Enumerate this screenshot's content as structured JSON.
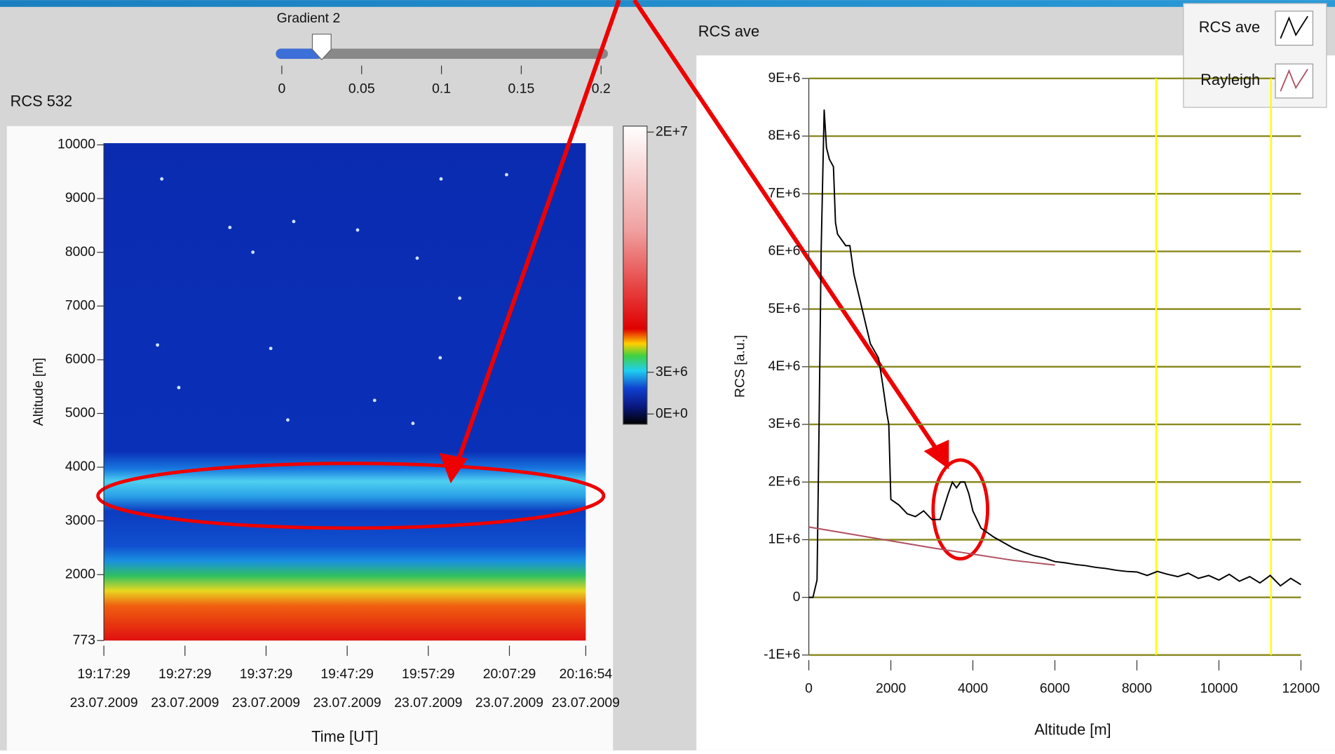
{
  "slider": {
    "label": "Gradient 2",
    "value": 0.025,
    "range": [
      0,
      0.2
    ],
    "ticks": [
      0,
      0.05,
      0.1,
      0.15,
      0.2
    ]
  },
  "intensity_graph": {
    "title": "RCS 532",
    "y_label": "Altitude [m]",
    "x_label": "Time [UT]",
    "ylim": [
      773,
      10000
    ],
    "yticks": [
      10000,
      9000,
      8000,
      7000,
      6000,
      5000,
      4000,
      3000,
      2000,
      773
    ],
    "xticks": [
      {
        "time": "19:17:29",
        "date": "23.07.2009"
      },
      {
        "time": "19:27:29",
        "date": "23.07.2009"
      },
      {
        "time": "19:37:29",
        "date": "23.07.2009"
      },
      {
        "time": "19:47:29",
        "date": "23.07.2009"
      },
      {
        "time": "19:57:29",
        "date": "23.07.2009"
      },
      {
        "time": "20:07:29",
        "date": "23.07.2009"
      },
      {
        "time": "20:16:54",
        "date": "23.07.2009"
      }
    ],
    "colorbar_ticks": [
      {
        "value": 20000000,
        "label": "2E+7"
      },
      {
        "value": 3000000,
        "label": "3E+6"
      },
      {
        "value": 0,
        "label": "0E+0"
      }
    ]
  },
  "chart_data": {
    "type": "line",
    "title": "RCS ave",
    "x_label": "Altitude [m]",
    "y_label": "RCS [a.u.]",
    "xlim": [
      0,
      12000
    ],
    "ylim": [
      -1000000,
      9000000
    ],
    "xticks": [
      0,
      2000,
      4000,
      6000,
      8000,
      10000,
      12000
    ],
    "yticks": [
      {
        "value": 9000000,
        "label": "9E+6"
      },
      {
        "value": 8000000,
        "label": "8E+6"
      },
      {
        "value": 7000000,
        "label": "7E+6"
      },
      {
        "value": 6000000,
        "label": "6E+6"
      },
      {
        "value": 5000000,
        "label": "5E+6"
      },
      {
        "value": 4000000,
        "label": "4E+6"
      },
      {
        "value": 3000000,
        "label": "3E+6"
      },
      {
        "value": 2000000,
        "label": "2E+6"
      },
      {
        "value": 1000000,
        "label": "1E+6"
      },
      0,
      {
        "value": -1000000,
        "label": "-1E+6"
      }
    ],
    "grid": true,
    "grid_color": "#8a8a20",
    "legend": "top-right",
    "cursors": [
      8470,
      11270
    ],
    "cursor_color": "#ffff00",
    "series": [
      {
        "name": "RCS ave",
        "color": "#000000",
        "x": [
          0,
          100,
          200,
          250,
          300,
          374,
          430,
          500,
          600,
          650,
          700,
          900,
          1000,
          1100,
          1300,
          1500,
          1700,
          1800,
          1900,
          1950,
          2000,
          2200,
          2400,
          2600,
          2800,
          3000,
          3200,
          3400,
          3500,
          3600,
          3700,
          3800,
          3900,
          4000,
          4200,
          4500,
          5000,
          5250,
          5500,
          5750,
          6000,
          6250,
          6500,
          6750,
          7000,
          7250,
          7500,
          7750,
          8000,
          8250,
          8500,
          8750,
          9000,
          9250,
          9500,
          9750,
          10000,
          10250,
          10500,
          10750,
          11000,
          11250,
          11500,
          11750,
          12000
        ],
        "values": [
          0,
          0,
          300000,
          3000000,
          6000000,
          8460000,
          7800000,
          7600000,
          7470000,
          6500000,
          6300000,
          6100000,
          6100000,
          5600000,
          5000000,
          4400000,
          4150000,
          3700000,
          3200000,
          3000000,
          1700000,
          1600000,
          1450000,
          1400000,
          1500000,
          1350000,
          1350000,
          1800000,
          2000000,
          1900000,
          2000000,
          2000000,
          1800000,
          1500000,
          1200000,
          1050000,
          850000,
          780000,
          720000,
          680000,
          620000,
          600000,
          570000,
          550000,
          520000,
          500000,
          470000,
          450000,
          440000,
          380000,
          450000,
          400000,
          360000,
          420000,
          330000,
          380000,
          300000,
          400000,
          280000,
          360000,
          250000,
          380000,
          200000,
          330000,
          220000
        ]
      },
      {
        "name": "Rayleigh",
        "color": "#b05060",
        "x": [
          0,
          1000,
          2000,
          3000,
          4000,
          5000,
          6000
        ],
        "values": [
          1220000,
          1100000,
          980000,
          860000,
          750000,
          640000,
          560000
        ]
      }
    ]
  }
}
